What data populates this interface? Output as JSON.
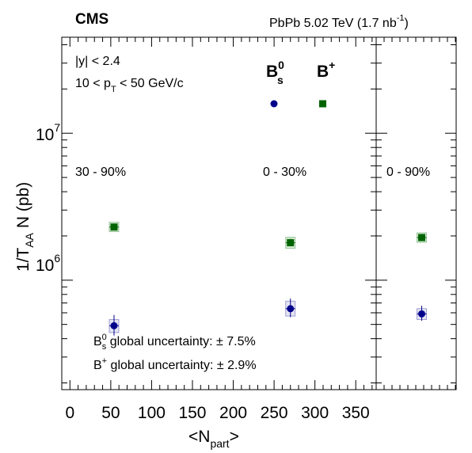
{
  "header": {
    "experiment": "CMS",
    "collision": "PbPb 5.02 TeV (1.7 nb",
    "lumi_sup": "-1",
    "lumi_close": ")"
  },
  "labels": {
    "rapidity": "|y| < 2.4",
    "pt_left": "10 < p",
    "pt_sub": "T",
    "pt_right": " < 50 GeV/c",
    "legend_bs": "B",
    "legend_bs_sup": "0",
    "legend_bs_sub": "s",
    "legend_bp": "B",
    "legend_bp_sup": "+",
    "centrality": [
      "30 - 90%",
      "0 - 30%",
      "0 - 90%"
    ],
    "bs_global_pre": "B",
    "bs_global_sup": "0",
    "bs_global_sub": "s",
    "bs_global_post": " global uncertainty: ± 7.5%",
    "bp_global_pre": "B",
    "bp_global_sup": "+",
    "bp_global_post": " global uncertainty: ± 2.9%"
  },
  "chart_data": {
    "type": "scatter",
    "y_scale": "log",
    "ylim": [
      180000,
      45000000
    ],
    "xlim": [
      -10,
      375
    ],
    "ylabel_main": "1/T",
    "ylabel_sub": "AA",
    "ylabel_post": " N (pb)",
    "xlabel_main": "<N",
    "xlabel_sub": "part",
    "xlabel_post": ">",
    "x_ticks": [
      "0",
      "50",
      "100",
      "150",
      "200",
      "250",
      "300",
      "350"
    ],
    "y_ticks": [
      {
        "base": "10",
        "exp": "6",
        "value": 1000000
      },
      {
        "base": "10",
        "exp": "7",
        "value": 10000000
      }
    ],
    "series": [
      {
        "name": "Bs0",
        "color": "#00008b",
        "marker": "circle",
        "points": [
          {
            "x": 54,
            "y": 490000,
            "stat_lo": 420000,
            "stat_hi": 580000,
            "sys_lo": 440000,
            "sys_hi": 540000
          },
          {
            "x": 270,
            "y": 640000,
            "stat_lo": 560000,
            "stat_hi": 750000,
            "sys_lo": 570000,
            "sys_hi": 720000
          }
        ],
        "integrated": {
          "y": 590000,
          "stat_lo": 530000,
          "stat_hi": 670000,
          "sys_lo": 540000,
          "sys_hi": 640000
        }
      },
      {
        "name": "B+",
        "color": "#006400",
        "marker": "square",
        "points": [
          {
            "x": 54,
            "y": 2300000,
            "stat_lo": 2190000,
            "stat_hi": 2420000,
            "sys_lo": 2140000,
            "sys_hi": 2480000
          },
          {
            "x": 270,
            "y": 1800000,
            "stat_lo": 1700000,
            "stat_hi": 1910000,
            "sys_lo": 1650000,
            "sys_hi": 1960000
          }
        ],
        "integrated": {
          "y": 1950000,
          "stat_lo": 1850000,
          "stat_hi": 2060000,
          "sys_lo": 1810000,
          "sys_hi": 2100000
        }
      }
    ]
  }
}
